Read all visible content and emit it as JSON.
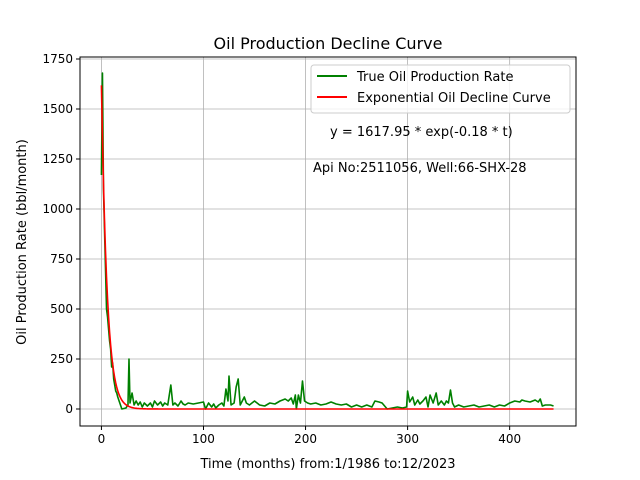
{
  "chart_data": {
    "type": "line",
    "title": "Oil Production Decline Curve",
    "xlabel": "Time (months) from:1/1986 to:12/2023",
    "ylabel": "Oil Production Rate (bbl/month)",
    "xlim": [
      -21,
      465
    ],
    "ylim": [
      -85,
      1760
    ],
    "x_ticks": [
      0,
      100,
      200,
      300,
      400
    ],
    "y_ticks": [
      0,
      250,
      500,
      750,
      1000,
      1250,
      1500,
      1750
    ],
    "grid": true,
    "legend_position": "top-right",
    "annotations": [
      "y = 1617.95 * exp(-0.18 * t)",
      "Api No:2511056, Well:66-SHX-28"
    ],
    "series": [
      {
        "name": "True Oil Production Rate",
        "color": "#008000",
        "points": [
          [
            0,
            1170
          ],
          [
            1,
            1680
          ],
          [
            2,
            1100
          ],
          [
            3,
            900
          ],
          [
            4,
            700
          ],
          [
            5,
            500
          ],
          [
            6,
            460
          ],
          [
            7,
            400
          ],
          [
            8,
            340
          ],
          [
            9,
            300
          ],
          [
            10,
            210
          ],
          [
            11,
            230
          ],
          [
            12,
            150
          ],
          [
            13,
            120
          ],
          [
            14,
            90
          ],
          [
            15,
            80
          ],
          [
            16,
            60
          ],
          [
            18,
            30
          ],
          [
            20,
            0
          ],
          [
            24,
            5
          ],
          [
            26,
            20
          ],
          [
            27,
            250
          ],
          [
            28,
            30
          ],
          [
            30,
            80
          ],
          [
            32,
            20
          ],
          [
            34,
            40
          ],
          [
            36,
            20
          ],
          [
            38,
            35
          ],
          [
            40,
            10
          ],
          [
            42,
            30
          ],
          [
            45,
            15
          ],
          [
            48,
            30
          ],
          [
            50,
            10
          ],
          [
            52,
            40
          ],
          [
            55,
            20
          ],
          [
            58,
            35
          ],
          [
            60,
            15
          ],
          [
            62,
            30
          ],
          [
            65,
            20
          ],
          [
            68,
            120
          ],
          [
            70,
            20
          ],
          [
            72,
            30
          ],
          [
            75,
            15
          ],
          [
            78,
            40
          ],
          [
            80,
            25
          ],
          [
            82,
            20
          ],
          [
            85,
            30
          ],
          [
            90,
            25
          ],
          [
            95,
            30
          ],
          [
            100,
            35
          ],
          [
            102,
            0
          ],
          [
            105,
            30
          ],
          [
            108,
            10
          ],
          [
            110,
            25
          ],
          [
            112,
            5
          ],
          [
            115,
            20
          ],
          [
            118,
            30
          ],
          [
            120,
            15
          ],
          [
            122,
            100
          ],
          [
            124,
            40
          ],
          [
            125,
            165
          ],
          [
            127,
            20
          ],
          [
            130,
            30
          ],
          [
            132,
            110
          ],
          [
            134,
            150
          ],
          [
            136,
            20
          ],
          [
            138,
            40
          ],
          [
            140,
            60
          ],
          [
            142,
            30
          ],
          [
            145,
            20
          ],
          [
            150,
            40
          ],
          [
            155,
            20
          ],
          [
            160,
            15
          ],
          [
            165,
            30
          ],
          [
            170,
            25
          ],
          [
            175,
            40
          ],
          [
            180,
            50
          ],
          [
            183,
            40
          ],
          [
            186,
            55
          ],
          [
            188,
            25
          ],
          [
            190,
            70
          ],
          [
            191,
            0
          ],
          [
            193,
            70
          ],
          [
            195,
            30
          ],
          [
            197,
            140
          ],
          [
            199,
            40
          ],
          [
            202,
            30
          ],
          [
            205,
            25
          ],
          [
            210,
            30
          ],
          [
            215,
            20
          ],
          [
            220,
            25
          ],
          [
            225,
            35
          ],
          [
            230,
            25
          ],
          [
            235,
            20
          ],
          [
            240,
            25
          ],
          [
            245,
            10
          ],
          [
            250,
            20
          ],
          [
            255,
            10
          ],
          [
            260,
            20
          ],
          [
            265,
            10
          ],
          [
            268,
            40
          ],
          [
            272,
            35
          ],
          [
            275,
            30
          ],
          [
            280,
            0
          ],
          [
            285,
            5
          ],
          [
            290,
            10
          ],
          [
            295,
            5
          ],
          [
            299,
            10
          ],
          [
            300,
            90
          ],
          [
            302,
            35
          ],
          [
            305,
            60
          ],
          [
            307,
            20
          ],
          [
            310,
            45
          ],
          [
            312,
            25
          ],
          [
            315,
            40
          ],
          [
            318,
            60
          ],
          [
            320,
            10
          ],
          [
            322,
            70
          ],
          [
            325,
            30
          ],
          [
            328,
            80
          ],
          [
            330,
            20
          ],
          [
            333,
            40
          ],
          [
            336,
            20
          ],
          [
            338,
            40
          ],
          [
            340,
            30
          ],
          [
            342,
            95
          ],
          [
            344,
            30
          ],
          [
            346,
            10
          ],
          [
            350,
            20
          ],
          [
            355,
            10
          ],
          [
            360,
            15
          ],
          [
            365,
            20
          ],
          [
            370,
            10
          ],
          [
            375,
            15
          ],
          [
            380,
            20
          ],
          [
            385,
            10
          ],
          [
            390,
            20
          ],
          [
            395,
            15
          ],
          [
            400,
            30
          ],
          [
            405,
            40
          ],
          [
            410,
            35
          ],
          [
            412,
            45
          ],
          [
            415,
            40
          ],
          [
            420,
            35
          ],
          [
            425,
            45
          ],
          [
            428,
            35
          ],
          [
            430,
            50
          ],
          [
            432,
            15
          ],
          [
            435,
            20
          ],
          [
            440,
            20
          ],
          [
            443,
            15
          ]
        ]
      },
      {
        "name": "Exponential Oil Decline Curve",
        "color": "#ff0000",
        "function": {
          "a": 1617.95,
          "b": -0.18
        },
        "x_range": [
          0,
          443
        ]
      }
    ]
  }
}
